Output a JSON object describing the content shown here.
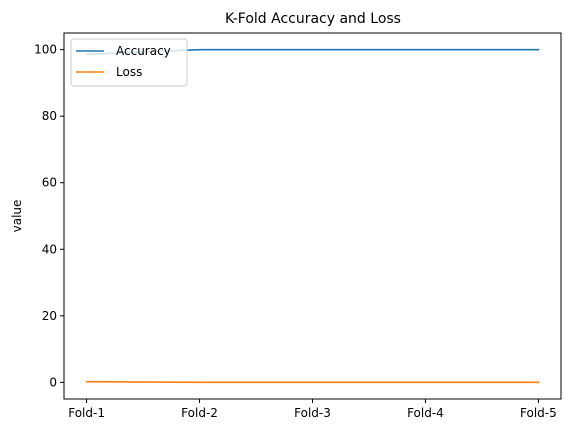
{
  "chart_data": {
    "type": "line",
    "title": "K-Fold Accuracy and Loss",
    "xlabel": "",
    "ylabel": "value",
    "categories": [
      "Fold-1",
      "Fold-2",
      "Fold-3",
      "Fold-4",
      "Fold-5"
    ],
    "series": [
      {
        "name": "Accuracy",
        "color": "#1f77b4",
        "values": [
          98.6,
          100.0,
          100.0,
          100.0,
          100.0
        ]
      },
      {
        "name": "Loss",
        "color": "#ff7f0e",
        "values": [
          0.2,
          0.0,
          0.0,
          0.0,
          0.0
        ]
      }
    ],
    "ylim": [
      -5,
      105
    ],
    "yticks": [
      0,
      20,
      40,
      60,
      80,
      100
    ],
    "grid": false,
    "legend_position": "top-left"
  }
}
